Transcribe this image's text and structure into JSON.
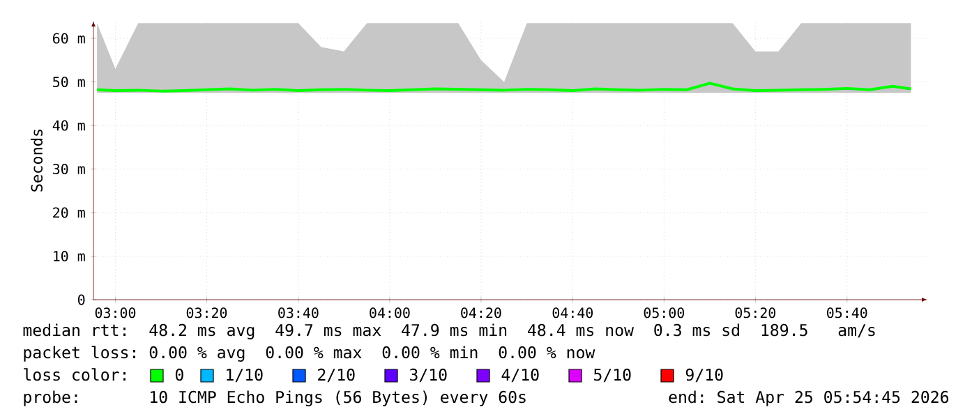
{
  "chart_data": {
    "type": "line",
    "ylabel": "Seconds",
    "legend_title": "loss color:",
    "legend": "bottom",
    "grid": true,
    "marker": "none",
    "line_style": "solid",
    "x": [
      2.933,
      3.0,
      3.083,
      3.167,
      3.25,
      3.333,
      3.417,
      3.5,
      3.583,
      3.667,
      3.75,
      3.833,
      3.917,
      4.0,
      4.083,
      4.167,
      4.25,
      4.333,
      4.417,
      4.5,
      4.583,
      4.667,
      4.75,
      4.833,
      4.917,
      5.0,
      5.083,
      5.167,
      5.25,
      5.333,
      5.417,
      5.5,
      5.583,
      5.667,
      5.75,
      5.833,
      5.9
    ],
    "xlim": [
      2.92,
      5.96
    ],
    "ylim": [
      0,
      64
    ],
    "xticks": [
      {
        "value": 3.0,
        "label": "03:00"
      },
      {
        "value": 3.333,
        "label": "03:20"
      },
      {
        "value": 3.667,
        "label": "03:40"
      },
      {
        "value": 4.0,
        "label": "04:00"
      },
      {
        "value": 4.333,
        "label": "04:20"
      },
      {
        "value": 4.667,
        "label": "04:40"
      },
      {
        "value": 5.0,
        "label": "05:00"
      },
      {
        "value": 5.333,
        "label": "05:20"
      },
      {
        "value": 5.667,
        "label": "05:40"
      }
    ],
    "yticks": [
      0,
      {
        "value": 10,
        "label": "10 m"
      },
      {
        "value": 20,
        "label": "20 m"
      },
      {
        "value": 30,
        "label": "30 m"
      },
      {
        "value": 40,
        "label": "40 m"
      },
      {
        "value": 50,
        "label": "50 m"
      },
      {
        "value": 60,
        "label": "60 m"
      }
    ],
    "series": [
      {
        "name": "0",
        "color": "#00ff00",
        "values": [
          48.2,
          48.0,
          48.1,
          47.9,
          48.0,
          48.2,
          48.4,
          48.1,
          48.3,
          48.0,
          48.2,
          48.3,
          48.1,
          48.0,
          48.2,
          48.4,
          48.3,
          48.2,
          48.1,
          48.3,
          48.2,
          48.0,
          48.4,
          48.2,
          48.1,
          48.3,
          48.2,
          49.7,
          48.4,
          48.0,
          48.1,
          48.2,
          48.3,
          48.5,
          48.2,
          49.0,
          48.4
        ],
        "lower": [
          47.5,
          47.5,
          47.5,
          47.5,
          47.5,
          47.5,
          47.5,
          47.5,
          47.5,
          47.5,
          47.5,
          47.5,
          47.5,
          47.5,
          47.5,
          47.5,
          47.5,
          47.5,
          47.5,
          47.5,
          47.5,
          47.5,
          47.5,
          47.5,
          47.5,
          47.5,
          47.5,
          47.5,
          47.5,
          47.5,
          47.5,
          47.5,
          47.5,
          47.5,
          47.5,
          47.5,
          47.5
        ],
        "upper": [
          63.5,
          53,
          63.5,
          63.5,
          63.5,
          63.5,
          63.5,
          63.5,
          63.5,
          63.5,
          58,
          57,
          63.5,
          63.5,
          63.5,
          63.5,
          63.5,
          55,
          50,
          63.5,
          63.5,
          63.5,
          63.5,
          63.5,
          63.5,
          63.5,
          63.5,
          63.5,
          63.5,
          57,
          57,
          63.5,
          63.5,
          63.5,
          63.5,
          63.5,
          63.5
        ]
      },
      {
        "name": "1/10",
        "color": "#00b8ff",
        "values": [
          null,
          null,
          null,
          null,
          null,
          null,
          null,
          null,
          null,
          null,
          null,
          null,
          null,
          null,
          null,
          null,
          null,
          null,
          null,
          null,
          null,
          null,
          null,
          null,
          null,
          null,
          null,
          null,
          null,
          null,
          null,
          null,
          null,
          null,
          null,
          null,
          null
        ]
      },
      {
        "name": "2/10",
        "color": "#0059ff",
        "values": [
          null,
          null,
          null,
          null,
          null,
          null,
          null,
          null,
          null,
          null,
          null,
          null,
          null,
          null,
          null,
          null,
          null,
          null,
          null,
          null,
          null,
          null,
          null,
          null,
          null,
          null,
          null,
          null,
          null,
          null,
          null,
          null,
          null,
          null,
          null,
          null,
          null
        ]
      },
      {
        "name": "3/10",
        "color": "#5e00ff",
        "values": [
          null,
          null,
          null,
          null,
          null,
          null,
          null,
          null,
          null,
          null,
          null,
          null,
          null,
          null,
          null,
          null,
          null,
          null,
          null,
          null,
          null,
          null,
          null,
          null,
          null,
          null,
          null,
          null,
          null,
          null,
          null,
          null,
          null,
          null,
          null,
          null,
          null
        ]
      },
      {
        "name": "4/10",
        "color": "#7e00ff",
        "values": [
          null,
          null,
          null,
          null,
          null,
          null,
          null,
          null,
          null,
          null,
          null,
          null,
          null,
          null,
          null,
          null,
          null,
          null,
          null,
          null,
          null,
          null,
          null,
          null,
          null,
          null,
          null,
          null,
          null,
          null,
          null,
          null,
          null,
          null,
          null,
          null,
          null
        ]
      },
      {
        "name": "5/10",
        "color": "#dd00ff",
        "values": [
          null,
          null,
          null,
          null,
          null,
          null,
          null,
          null,
          null,
          null,
          null,
          null,
          null,
          null,
          null,
          null,
          null,
          null,
          null,
          null,
          null,
          null,
          null,
          null,
          null,
          null,
          null,
          null,
          null,
          null,
          null,
          null,
          null,
          null,
          null,
          null,
          null
        ]
      },
      {
        "name": "9/10",
        "color": "#ff0000",
        "values": [
          null,
          null,
          null,
          null,
          null,
          null,
          null,
          null,
          null,
          null,
          null,
          null,
          null,
          null,
          null,
          null,
          null,
          null,
          null,
          null,
          null,
          null,
          null,
          null,
          null,
          null,
          null,
          null,
          null,
          null,
          null,
          null,
          null,
          null,
          null,
          null,
          null
        ]
      }
    ],
    "annotations": [
      "median rtt:  48.2 ms avg  49.7 ms max  47.9 ms min  48.4 ms now  0.3 ms sd  189.5   am/s",
      "packet loss: 0.00 % avg  0.00 % max  0.00 % min  0.00 % now",
      "probe:       10 ICMP Echo Pings (56 Bytes) every 60s",
      "end: Sat Apr 25 05:54:45 2026"
    ]
  }
}
